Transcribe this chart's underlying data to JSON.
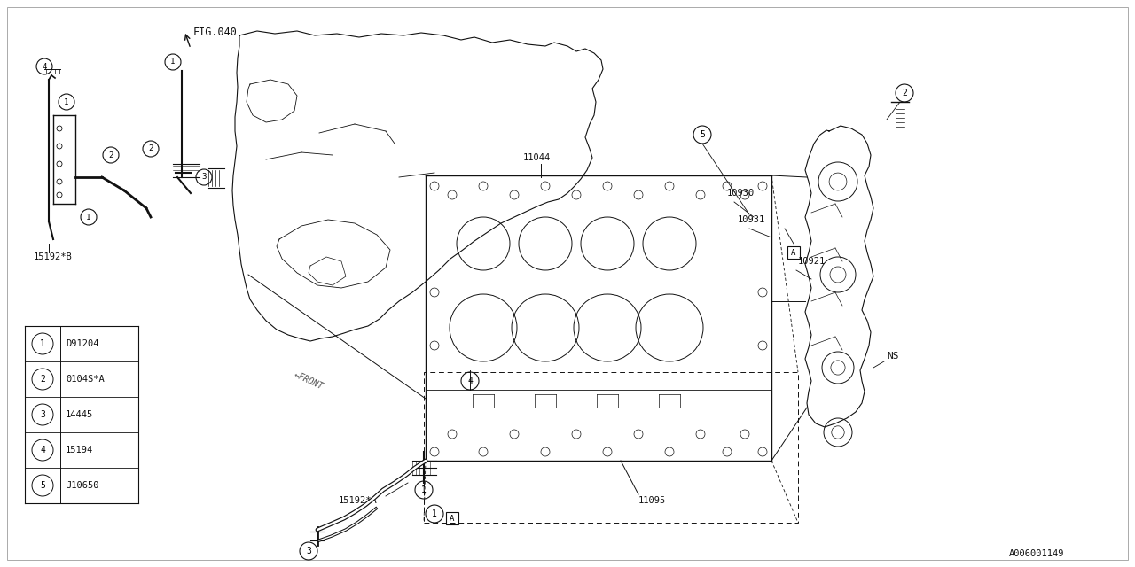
{
  "bg_color": "#ffffff",
  "line_color": "#111111",
  "fig_ref": "FIG.040",
  "part_code": "A006001149",
  "parts": [
    {
      "num": 1,
      "code": "D91204"
    },
    {
      "num": 2,
      "code": "0104S*A"
    },
    {
      "num": 3,
      "code": "14445"
    },
    {
      "num": 4,
      "code": "15194"
    },
    {
      "num": 5,
      "code": "J10650"
    }
  ],
  "figsize": [
    12.8,
    6.4
  ],
  "dpi": 100,
  "xlim": [
    0,
    1280
  ],
  "ylim": [
    0,
    640
  ]
}
